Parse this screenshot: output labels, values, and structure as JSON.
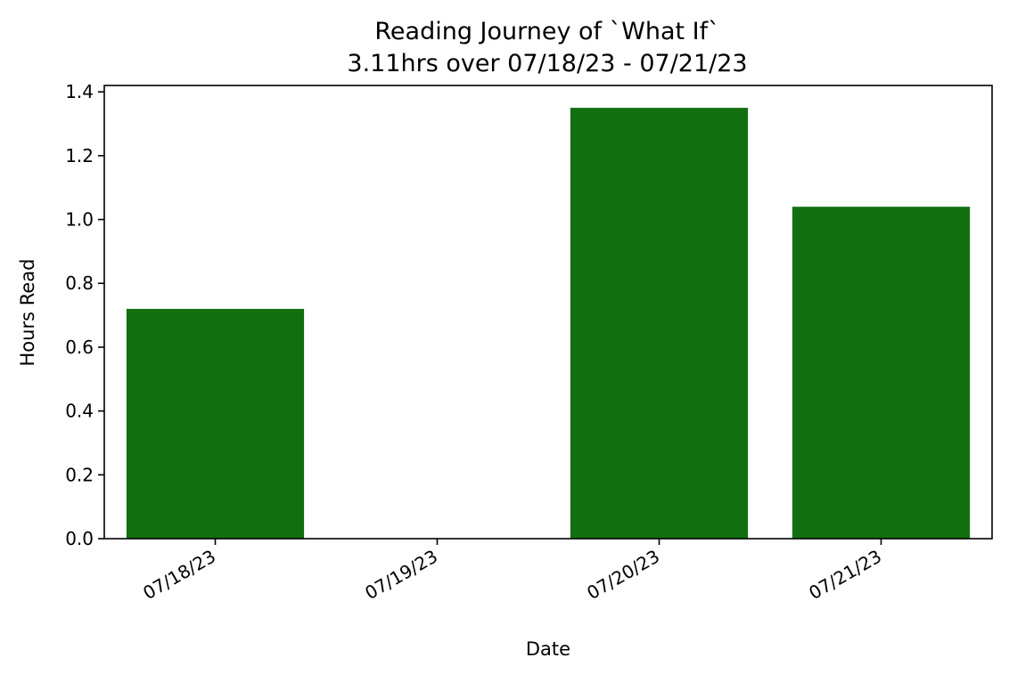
{
  "chart_data": {
    "type": "bar",
    "title": "Reading Journey of `What If`",
    "subtitle": "3.11hrs over 07/18/23 - 07/21/23",
    "xlabel": "Date",
    "ylabel": "Hours Read",
    "categories": [
      "07/18/23",
      "07/19/23",
      "07/20/23",
      "07/21/23"
    ],
    "values": [
      0.72,
      0.0,
      1.35,
      1.04
    ],
    "ylim": [
      0,
      1.42
    ],
    "yticks": [
      "0.0",
      "0.2",
      "0.4",
      "0.6",
      "0.8",
      "1.0",
      "1.2",
      "1.4"
    ],
    "bar_color": "#116f10",
    "grid": false,
    "legend": "none"
  }
}
